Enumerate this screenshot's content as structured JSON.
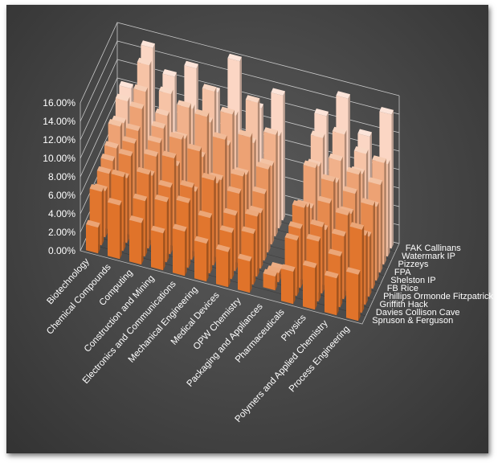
{
  "chart_data": {
    "type": "3d-column",
    "title": "",
    "xlabel": "",
    "ylabel": "",
    "zlim": [
      0,
      0.16
    ],
    "z_ticks": [
      "0.00%",
      "2.00%",
      "4.00%",
      "6.00%",
      "8.00%",
      "10.00%",
      "12.00%",
      "14.00%",
      "16.00%"
    ],
    "categories": [
      "Biotechnology",
      "Chemical Compounds",
      "Computing",
      "Construction and Mining",
      "Electronics and Communications",
      "Mechanical Engineering",
      "Medical Devices",
      "OPW Chemistry",
      "Packaging and Appliances",
      "Pharmaceuticals",
      "Physics",
      "Polymers and Applied Chemistry",
      "Process Engineering"
    ],
    "series": [
      {
        "name": "Spruson & Ferguson",
        "values": [
          0.028,
          0.058,
          0.045,
          0.04,
          0.048,
          0.041,
          0.038,
          0.034,
          0.0,
          0.035,
          0.045,
          0.04,
          0.05
        ]
      },
      {
        "name": "Davies Collison Cave",
        "values": [
          0.058,
          0.08,
          0.06,
          0.065,
          0.07,
          0.06,
          0.05,
          0.055,
          0.015,
          0.06,
          0.065,
          0.055,
          0.09
        ]
      },
      {
        "name": "Griffith Hack",
        "values": [
          0.05,
          0.07,
          0.08,
          0.072,
          0.078,
          0.092,
          0.06,
          0.065,
          0.01,
          0.064,
          0.072,
          0.068,
          0.075
        ]
      },
      {
        "name": "Phillips Ormonde Fitzpatrick",
        "values": [
          0.06,
          0.085,
          0.07,
          0.095,
          0.065,
          0.08,
          0.075,
          0.06,
          0.005,
          0.078,
          0.06,
          0.082,
          0.065
        ]
      },
      {
        "name": "FB Rice",
        "values": [
          0.065,
          0.09,
          0.082,
          0.078,
          0.1,
          0.075,
          0.085,
          0.072,
          0.0,
          0.07,
          0.08,
          0.075,
          0.09
        ]
      },
      {
        "name": "Shelston IP",
        "values": [
          0.07,
          0.095,
          0.088,
          0.098,
          0.085,
          0.11,
          0.078,
          0.09,
          0.0,
          0.06,
          0.095,
          0.088,
          0.08
        ]
      },
      {
        "name": "FPA",
        "values": [
          0.085,
          0.11,
          0.095,
          0.09,
          0.12,
          0.095,
          0.11,
          0.085,
          0.0,
          0.095,
          0.085,
          0.1,
          0.095
        ]
      },
      {
        "name": "Pizzeys",
        "values": [
          0.08,
          0.12,
          0.1,
          0.115,
          0.105,
          0.12,
          0.095,
          0.11,
          0.0,
          0.088,
          0.1,
          0.092,
          0.11
        ]
      },
      {
        "name": "Watermark IP",
        "values": [
          0.095,
          0.14,
          0.115,
          0.105,
          0.13,
          0.11,
          0.13,
          0.1,
          0.0,
          0.11,
          0.12,
          0.105,
          0.1
        ]
      },
      {
        "name": "FAK Callinans",
        "values": [
          0.1,
          0.15,
          0.125,
          0.14,
          0.12,
          0.16,
          0.115,
          0.135,
          0.0,
          0.125,
          0.15,
          0.115,
          0.145
        ]
      }
    ],
    "colors": {
      "background": "#444444",
      "front_series": "#e0732a",
      "back_series": "#fbd6c4",
      "gridline": "#cccccc",
      "text": "#ffffff"
    }
  }
}
